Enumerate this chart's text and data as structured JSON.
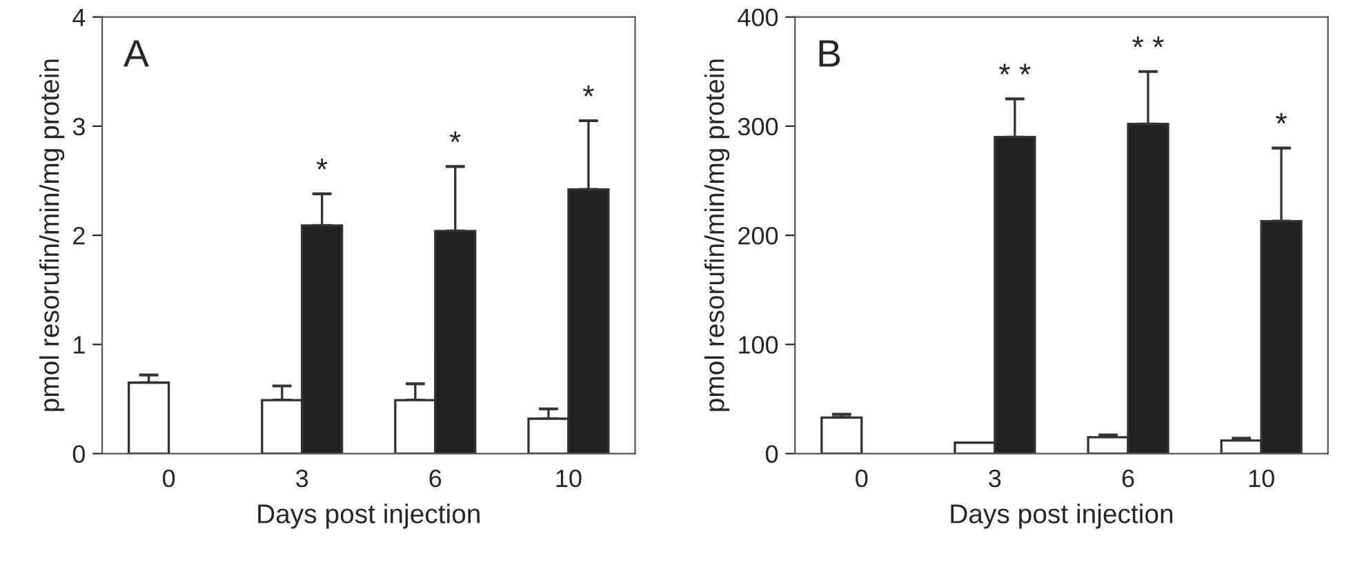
{
  "chart_data": [
    {
      "type": "bar",
      "title": "A",
      "xlabel": "Days post injection",
      "ylabel": "pmol resorufin/min/mg protein",
      "categories": [
        "0",
        "3",
        "6",
        "10"
      ],
      "ylim": [
        0,
        4
      ],
      "yticks": [
        0,
        1,
        2,
        3,
        4
      ],
      "grid": false,
      "legend": false,
      "series": [
        {
          "color": "#ffffff",
          "values": [
            0.65,
            0.49,
            0.49,
            0.32
          ],
          "errors": [
            [
              0.65,
              0.72
            ],
            [
              0.49,
              0.62
            ],
            [
              0.49,
              0.64
            ],
            [
              0.32,
              0.41
            ]
          ]
        },
        {
          "color": "#222222",
          "values": [
            null,
            2.09,
            2.04,
            2.42
          ],
          "errors": [
            null,
            [
              2.09,
              2.38
            ],
            [
              2.04,
              2.63
            ],
            [
              2.42,
              3.05
            ]
          ]
        }
      ],
      "annotations": [
        "*",
        "*",
        "*"
      ]
    },
    {
      "type": "bar",
      "title": "B",
      "xlabel": "Days post injection",
      "ylabel": "pmol resorufin/min/mg protein",
      "categories": [
        "0",
        "3",
        "6",
        "10"
      ],
      "ylim": [
        0,
        400
      ],
      "yticks": [
        0,
        100,
        200,
        300,
        400
      ],
      "grid": false,
      "legend": false,
      "series": [
        {
          "color": "#ffffff",
          "values": [
            33,
            10,
            15,
            12
          ],
          "errors": [
            [
              33,
              36
            ],
            null,
            [
              15,
              17
            ],
            [
              12,
              14
            ]
          ]
        },
        {
          "color": "#222222",
          "values": [
            null,
            290,
            302,
            213
          ],
          "errors": [
            null,
            [
              290,
              325
            ],
            [
              302,
              350
            ],
            [
              213,
              280
            ]
          ]
        }
      ],
      "annotations": [
        "* *",
        "* *",
        "*"
      ]
    }
  ]
}
